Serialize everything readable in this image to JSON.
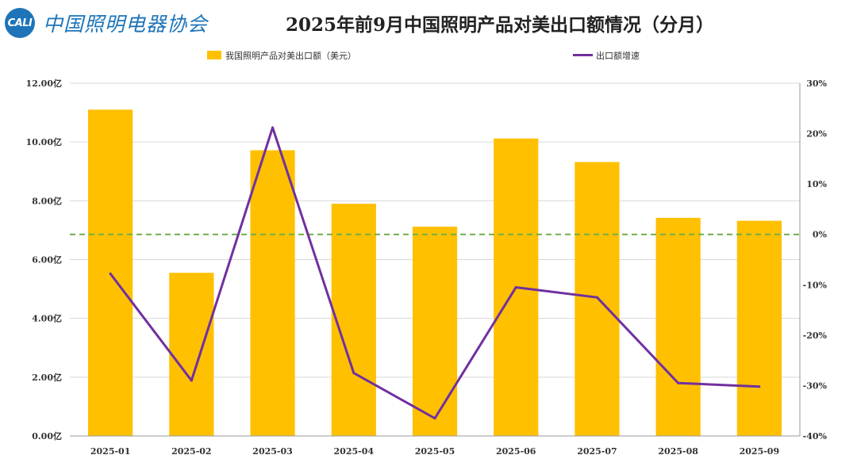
{
  "logo": {
    "abbr": "CALI",
    "text": "中国照明电器协会"
  },
  "chart_data": {
    "type": "bar",
    "title": "2025年前9月中国照明产品对美出口额情况（分月）",
    "categories": [
      "2025-01",
      "2025-02",
      "2025-03",
      "2025-04",
      "2025-05",
      "2025-06",
      "2025-07",
      "2025-08",
      "2025-09"
    ],
    "series": [
      {
        "name": "我国照明产品对美出口额（美元）",
        "type": "bar",
        "axis": "left",
        "unit": "亿",
        "color": "#FFC000",
        "values": [
          11.1,
          5.55,
          9.72,
          7.9,
          7.12,
          10.12,
          9.32,
          7.42,
          7.32
        ]
      },
      {
        "name": "出口额增速",
        "type": "line",
        "axis": "right",
        "unit": "%",
        "color": "#7030A0",
        "values": [
          -7.8,
          -29.0,
          21.2,
          -27.5,
          -36.5,
          -10.5,
          -12.5,
          -29.5,
          -30.2
        ]
      }
    ],
    "y_left": {
      "ticks": [
        "12.00亿",
        "10.00亿",
        "8.00亿",
        "6.00亿",
        "4.00亿",
        "2.00亿",
        "0.00亿"
      ],
      "ylim": [
        0,
        12
      ]
    },
    "y_right": {
      "ticks": [
        "30%",
        "20%",
        "10%",
        "0%",
        "-10%",
        "-20%",
        "-30%",
        "-40%"
      ],
      "ylim": [
        -40,
        30
      ]
    },
    "reference_line": {
      "value": 0,
      "axis": "right",
      "color": "#70AD47",
      "style": "dashed"
    },
    "grid": true,
    "legend": "top"
  }
}
